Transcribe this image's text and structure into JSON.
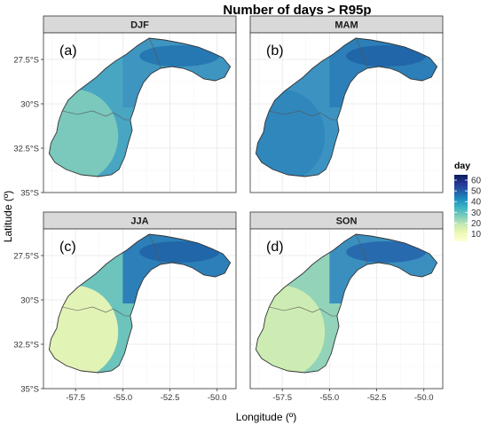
{
  "figure": {
    "title": "Number of days > R95p",
    "x_axis_label": "Longitude (º)",
    "y_axis_label": "Latitude (º)",
    "x_ticks": [
      "-57.5",
      "-55.0",
      "-52.5",
      "-50.0"
    ],
    "y_ticks": [
      "27.5°S",
      "30°S",
      "32.5°S",
      "35°S"
    ]
  },
  "panels": [
    {
      "season": "DJF",
      "tag": "(a)",
      "fill_north": "#3e95c0",
      "fill_south": "#48a6c3",
      "fill_west": "#7fcdbb",
      "accent": "#1f6fae"
    },
    {
      "season": "MAM",
      "tag": "(b)",
      "fill_north": "#2c7fb8",
      "fill_south": "#3c93c1",
      "fill_west": "#2f86bb",
      "accent": "#1d5da3"
    },
    {
      "season": "JJA",
      "tag": "(c)",
      "fill_north": "#2c7fb8",
      "fill_south": "#6cc4bc",
      "fill_west": "#eef8b4",
      "accent": "#1d5da3"
    },
    {
      "season": "SON",
      "tag": "(d)",
      "fill_north": "#3a8fbf",
      "fill_south": "#92d3b9",
      "fill_west": "#d4eeb3",
      "accent": "#225ea8"
    }
  ],
  "legend": {
    "title": "day",
    "ticks": [
      "60",
      "50",
      "40",
      "30",
      "20",
      "10"
    ],
    "colors": [
      "#ffffd9",
      "#edf8b1",
      "#c7e9b4",
      "#7fcdbb",
      "#41b6c4",
      "#1d91c0",
      "#225ea8",
      "#253494",
      "#081d58"
    ],
    "min": 3,
    "max": 65
  }
}
